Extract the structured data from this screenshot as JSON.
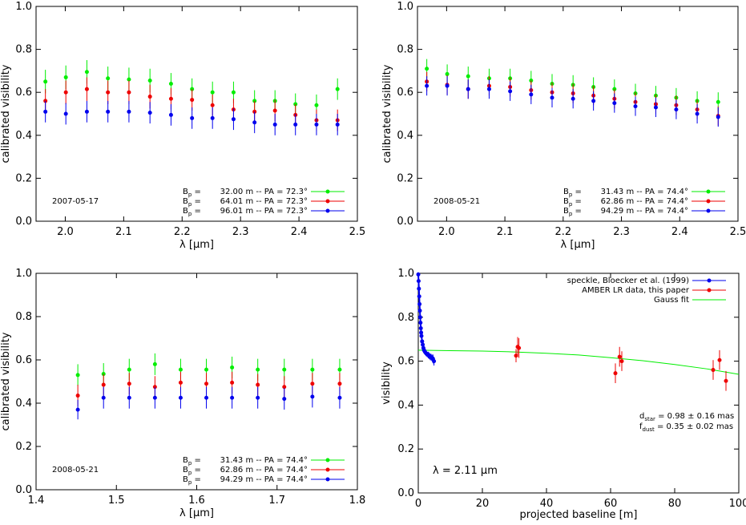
{
  "chart_data": [
    {
      "type": "scatter",
      "xlabel": "λ [μm]",
      "ylabel": "calibrated visibility",
      "xlim": [
        1.95,
        2.5
      ],
      "ylim": [
        0.0,
        1.0
      ],
      "xticks": [
        "2.0",
        "2.1",
        "2.2",
        "2.3",
        "2.4",
        "2.5"
      ],
      "xtick_values": [
        2.0,
        2.1,
        2.2,
        2.3,
        2.4,
        2.5
      ],
      "yticks": [
        "0.0",
        "0.2",
        "0.4",
        "0.6",
        "0.8",
        "1.0"
      ],
      "ytick_values": [
        0.0,
        0.2,
        0.4,
        0.6,
        0.8,
        1.0
      ],
      "annotation": "2007-05-17",
      "legend_position": "bottom-right",
      "x": [
        1.966,
        2.001,
        2.037,
        2.073,
        2.109,
        2.145,
        2.181,
        2.217,
        2.252,
        2.288,
        2.324,
        2.359,
        2.394,
        2.43,
        2.466
      ],
      "series": [
        {
          "name": "32.00 m -- PA = 72.3°",
          "color": "#00ee00",
          "values": [
            0.65,
            0.67,
            0.695,
            0.665,
            0.66,
            0.655,
            0.64,
            0.615,
            0.6,
            0.6,
            0.56,
            0.56,
            0.545,
            0.54,
            0.615
          ],
          "errors": [
            0.055,
            0.055,
            0.055,
            0.055,
            0.055,
            0.055,
            0.05,
            0.05,
            0.05,
            0.05,
            0.05,
            0.05,
            0.05,
            0.05,
            0.05
          ]
        },
        {
          "name": "64.01 m -- PA = 72.3°",
          "color": "#ee0000",
          "values": [
            0.56,
            0.6,
            0.615,
            0.6,
            0.6,
            0.58,
            0.57,
            0.565,
            0.54,
            0.52,
            0.51,
            0.515,
            0.495,
            0.47,
            0.47
          ],
          "errors": [
            0.055,
            0.055,
            0.055,
            0.055,
            0.055,
            0.055,
            0.05,
            0.05,
            0.05,
            0.05,
            0.05,
            0.05,
            0.05,
            0.05,
            0.05
          ]
        },
        {
          "name": "96.01 m -- PA = 72.3°",
          "color": "#0000ee",
          "values": [
            0.51,
            0.5,
            0.51,
            0.51,
            0.51,
            0.505,
            0.495,
            0.48,
            0.48,
            0.475,
            0.46,
            0.45,
            0.45,
            0.45,
            0.45
          ],
          "errors": [
            0.05,
            0.05,
            0.05,
            0.05,
            0.05,
            0.05,
            0.05,
            0.05,
            0.05,
            0.05,
            0.05,
            0.05,
            0.05,
            0.05,
            0.05
          ]
        }
      ]
    },
    {
      "type": "scatter",
      "xlabel": "λ [μm]",
      "ylabel": "calibrated visibility",
      "xlim": [
        1.95,
        2.5
      ],
      "ylim": [
        0.0,
        1.0
      ],
      "xticks": [
        "2.0",
        "2.1",
        "2.2",
        "2.3",
        "2.4",
        "2.5"
      ],
      "xtick_values": [
        2.0,
        2.1,
        2.2,
        2.3,
        2.4,
        2.5
      ],
      "yticks": [
        "0.0",
        "0.2",
        "0.4",
        "0.6",
        "0.8",
        "1.0"
      ],
      "ytick_values": [
        0.0,
        0.2,
        0.4,
        0.6,
        0.8,
        1.0
      ],
      "annotation": "2008-05-21",
      "legend_position": "bottom-right",
      "x": [
        1.966,
        2.001,
        2.037,
        2.073,
        2.109,
        2.145,
        2.181,
        2.217,
        2.252,
        2.288,
        2.324,
        2.359,
        2.394,
        2.43,
        2.466
      ],
      "series": [
        {
          "name": "31.43 m -- PA = 74.4°",
          "color": "#00ee00",
          "values": [
            0.71,
            0.685,
            0.675,
            0.665,
            0.665,
            0.655,
            0.64,
            0.635,
            0.625,
            0.615,
            0.595,
            0.585,
            0.575,
            0.56,
            0.555
          ],
          "errors": [
            0.045,
            0.045,
            0.045,
            0.045,
            0.045,
            0.045,
            0.045,
            0.045,
            0.045,
            0.045,
            0.045,
            0.045,
            0.045,
            0.045,
            0.045
          ]
        },
        {
          "name": "62.86 m -- PA = 74.4°",
          "color": "#ee0000",
          "values": [
            0.65,
            0.635,
            0.615,
            0.63,
            0.625,
            0.61,
            0.6,
            0.595,
            0.585,
            0.57,
            0.555,
            0.545,
            0.54,
            0.52,
            0.49
          ],
          "errors": [
            0.045,
            0.045,
            0.045,
            0.045,
            0.045,
            0.045,
            0.045,
            0.045,
            0.045,
            0.045,
            0.045,
            0.045,
            0.045,
            0.045,
            0.045
          ]
        },
        {
          "name": "94.29 m -- PA = 74.4°",
          "color": "#0000ee",
          "values": [
            0.63,
            0.63,
            0.615,
            0.615,
            0.605,
            0.59,
            0.575,
            0.57,
            0.56,
            0.55,
            0.535,
            0.53,
            0.52,
            0.5,
            0.485
          ],
          "errors": [
            0.045,
            0.045,
            0.045,
            0.045,
            0.045,
            0.045,
            0.045,
            0.045,
            0.045,
            0.045,
            0.045,
            0.045,
            0.045,
            0.045,
            0.045
          ]
        }
      ]
    },
    {
      "type": "scatter",
      "xlabel": "λ [μm]",
      "ylabel": "calibrated visibility",
      "xlim": [
        1.4,
        1.8
      ],
      "ylim": [
        0.0,
        1.0
      ],
      "xticks": [
        "1.4",
        "1.5",
        "1.6",
        "1.7",
        "1.8"
      ],
      "xtick_values": [
        1.4,
        1.5,
        1.6,
        1.7,
        1.8
      ],
      "yticks": [
        "0.0",
        "0.2",
        "0.4",
        "0.6",
        "0.8",
        "1.0"
      ],
      "ytick_values": [
        0.0,
        0.2,
        0.4,
        0.6,
        0.8,
        1.0
      ],
      "annotation": "2008-05-21",
      "legend_position": "bottom-right",
      "x": [
        1.452,
        1.484,
        1.516,
        1.548,
        1.58,
        1.612,
        1.644,
        1.676,
        1.709,
        1.744,
        1.778
      ],
      "series": [
        {
          "name": "31.43 m -- PA = 74.4°",
          "color": "#00ee00",
          "values": [
            0.53,
            0.535,
            0.555,
            0.58,
            0.555,
            0.555,
            0.565,
            0.555,
            0.555,
            0.555,
            0.555
          ],
          "errors": [
            0.05,
            0.05,
            0.05,
            0.05,
            0.05,
            0.05,
            0.05,
            0.05,
            0.05,
            0.05,
            0.05
          ]
        },
        {
          "name": "62.86 m -- PA = 74.4°",
          "color": "#ee0000",
          "values": [
            0.435,
            0.485,
            0.49,
            0.475,
            0.495,
            0.49,
            0.495,
            0.485,
            0.475,
            0.49,
            0.49
          ],
          "errors": [
            0.05,
            0.05,
            0.05,
            0.05,
            0.05,
            0.05,
            0.05,
            0.05,
            0.05,
            0.05,
            0.05
          ]
        },
        {
          "name": "94.29 m -- PA = 74.4°",
          "color": "#0000ee",
          "values": [
            0.37,
            0.425,
            0.425,
            0.425,
            0.425,
            0.425,
            0.425,
            0.425,
            0.42,
            0.43,
            0.425
          ],
          "errors": [
            0.045,
            0.05,
            0.05,
            0.05,
            0.05,
            0.05,
            0.05,
            0.05,
            0.05,
            0.05,
            0.05
          ]
        }
      ]
    },
    {
      "type": "scatter",
      "xlabel": "projected baseline [m]",
      "ylabel": "visibility",
      "xlim": [
        0,
        100
      ],
      "ylim": [
        0.0,
        1.0
      ],
      "xticks": [
        "0",
        "20",
        "40",
        "60",
        "80",
        "100"
      ],
      "xtick_values": [
        0,
        20,
        40,
        60,
        80,
        100
      ],
      "yticks": [
        "0.0",
        "0.2",
        "0.4",
        "0.6",
        "0.8",
        "1.0"
      ],
      "ytick_values": [
        0.0,
        0.2,
        0.4,
        0.6,
        0.8,
        1.0
      ],
      "legend_position": "top-right",
      "annotation_lambda": "λ = 2.11 μm",
      "annotation_dstar": "d",
      "annotation_dstar_sub": "star",
      "annotation_dstar_val": " = 0.98 ± 0.16 mas",
      "annotation_fdust": "f",
      "annotation_fdust_sub": "dust",
      "annotation_fdust_val": " = 0.35 ± 0.02 mas",
      "series": [
        {
          "name": "speckle, Bloecker et al. (1999)",
          "color": "#0000ee",
          "x": [
            0.0,
            0.1,
            0.2,
            0.3,
            0.4,
            0.5,
            0.6,
            0.7,
            0.8,
            0.9,
            1.0,
            1.2,
            1.4,
            1.6,
            1.8,
            2.0,
            2.2,
            2.5,
            2.8,
            3.1,
            3.4,
            3.7,
            4.0,
            4.3,
            4.6,
            4.9
          ],
          "y": [
            0.995,
            0.965,
            0.93,
            0.895,
            0.86,
            0.83,
            0.8,
            0.775,
            0.75,
            0.73,
            0.715,
            0.69,
            0.675,
            0.66,
            0.65,
            0.645,
            0.64,
            0.635,
            0.63,
            0.628,
            0.625,
            0.62,
            0.618,
            0.615,
            0.61,
            0.6
          ],
          "errors": [
            0.01,
            0.01,
            0.01,
            0.01,
            0.01,
            0.01,
            0.01,
            0.01,
            0.01,
            0.01,
            0.01,
            0.012,
            0.012,
            0.012,
            0.012,
            0.012,
            0.012,
            0.012,
            0.012,
            0.015,
            0.015,
            0.015,
            0.015,
            0.015,
            0.02,
            0.02
          ]
        },
        {
          "name": "AMBER LR data, this paper",
          "color": "#ee0000",
          "x": [
            30.5,
            31.0,
            31.4,
            61.5,
            62.8,
            63.5,
            92.0,
            94.0,
            96.0
          ],
          "y": [
            0.625,
            0.665,
            0.66,
            0.545,
            0.62,
            0.6,
            0.56,
            0.605,
            0.51
          ],
          "errors": [
            0.03,
            0.045,
            0.045,
            0.045,
            0.045,
            0.045,
            0.045,
            0.045,
            0.045
          ]
        },
        {
          "name": "Gauss fit",
          "color": "#00ee00",
          "fit": {
            "model": "gaussian",
            "x": [
              0,
              10,
              20,
              30,
              40,
              50,
              60,
              70,
              80,
              90,
              100
            ],
            "y": [
              0.65,
              0.648,
              0.646,
              0.642,
              0.636,
              0.628,
              0.616,
              0.602,
              0.585,
              0.565,
              0.54
            ]
          }
        }
      ]
    }
  ]
}
